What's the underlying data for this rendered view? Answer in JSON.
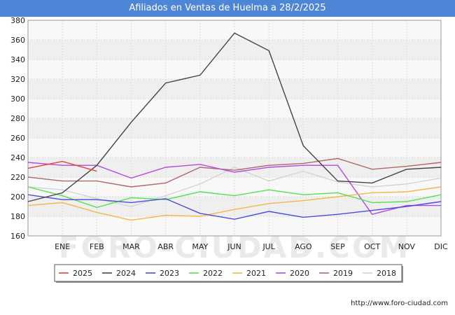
{
  "header": {
    "title": "Afiliados en Ventas de Huelma a 28/2/2025"
  },
  "footer": {
    "url": "http://www.foro-ciudad.com"
  },
  "watermark": "FORO-CIUDAD.COM",
  "chart_data": {
    "type": "line",
    "title": "Afiliados en Ventas de Huelma a 28/2/2025",
    "xlabel": "",
    "ylabel": "",
    "x": [
      "",
      "ENE",
      "FEB",
      "MAR",
      "ABR",
      "MAY",
      "JUN",
      "JUL",
      "AGO",
      "SEP",
      "OCT",
      "NOV",
      "DIC"
    ],
    "ylim": [
      160,
      380
    ],
    "yticks": [
      160,
      180,
      200,
      220,
      240,
      260,
      280,
      300,
      320,
      340,
      360,
      380
    ],
    "grid": true,
    "legend_position": "bottom",
    "series": [
      {
        "name": "2025",
        "color": "#e8413a",
        "values": [
          229,
          236,
          226,
          null,
          null,
          null,
          null,
          null,
          null,
          null,
          null,
          null,
          null
        ]
      },
      {
        "name": "2024",
        "color": "#444444",
        "values": [
          195,
          204,
          232,
          276,
          316,
          324,
          367,
          349,
          252,
          216,
          214,
          228,
          230
        ]
      },
      {
        "name": "2023",
        "color": "#4b4be0",
        "values": [
          202,
          197,
          197,
          194,
          198,
          183,
          177,
          185,
          179,
          182,
          186,
          190,
          195
        ]
      },
      {
        "name": "2022",
        "color": "#52e052",
        "values": [
          210,
          201,
          189,
          199,
          197,
          205,
          201,
          207,
          202,
          204,
          194,
          195,
          202
        ]
      },
      {
        "name": "2021",
        "color": "#f5b548",
        "values": [
          191,
          194,
          184,
          176,
          181,
          180,
          187,
          193,
          196,
          200,
          204,
          205,
          210
        ]
      },
      {
        "name": "2020",
        "color": "#b14be0",
        "values": [
          235,
          232,
          232,
          219,
          230,
          233,
          225,
          230,
          232,
          232,
          182,
          191,
          191
        ]
      },
      {
        "name": "2019",
        "color": "#b06868",
        "values": [
          220,
          216,
          216,
          210,
          214,
          230,
          227,
          232,
          234,
          239,
          228,
          231,
          235
        ]
      },
      {
        "name": "2018",
        "color": "#d4d4d4",
        "values": [
          210,
          207,
          198,
          190,
          201,
          213,
          230,
          216,
          226,
          215,
          210,
          213,
          219
        ]
      }
    ]
  }
}
